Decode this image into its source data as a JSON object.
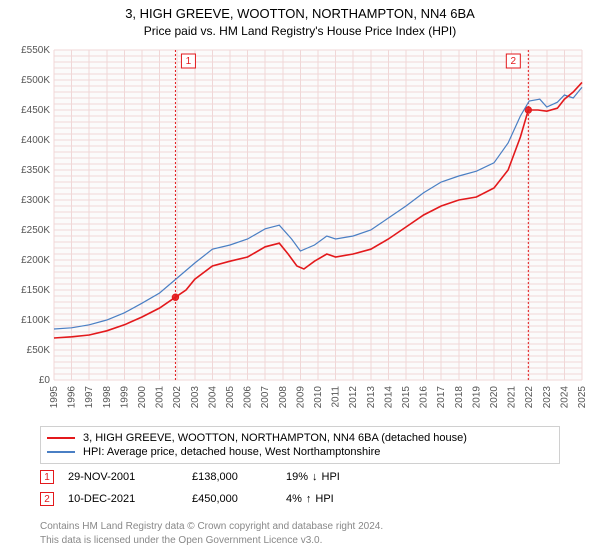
{
  "title": "3, HIGH GREEVE, WOOTTON, NORTHAMPTON, NN4 6BA",
  "subtitle": "Price paid vs. HM Land Registry's House Price Index (HPI)",
  "chart": {
    "type": "line",
    "background_color": "#fbfbfb",
    "grid_color": "#f0d7d7",
    "grid_fine_color": "#f8e9e9",
    "x_years": [
      1995,
      1996,
      1997,
      1998,
      1999,
      2000,
      2001,
      2002,
      2003,
      2004,
      2005,
      2006,
      2007,
      2008,
      2009,
      2010,
      2011,
      2012,
      2013,
      2014,
      2015,
      2016,
      2017,
      2018,
      2019,
      2020,
      2021,
      2022,
      2023,
      2024,
      2025
    ],
    "xlabel_rotate": -90,
    "y_ticks": [
      0,
      50000,
      100000,
      150000,
      200000,
      250000,
      300000,
      350000,
      400000,
      450000,
      500000,
      550000
    ],
    "y_tick_labels": [
      "£0",
      "£50K",
      "£100K",
      "£150K",
      "£200K",
      "£250K",
      "£300K",
      "£350K",
      "£400K",
      "£450K",
      "£500K",
      "£550K"
    ],
    "ylim": [
      0,
      550000
    ],
    "series": [
      {
        "id": "property",
        "label": "3, HIGH GREEVE, WOOTTON, NORTHAMPTON, NN4 6BA (detached house)",
        "color": "#e3191c",
        "width": 1.6,
        "points": [
          [
            1995.0,
            70000
          ],
          [
            1996.0,
            72000
          ],
          [
            1997.0,
            75000
          ],
          [
            1998.0,
            82000
          ],
          [
            1999.0,
            92000
          ],
          [
            2000.0,
            105000
          ],
          [
            2001.0,
            120000
          ],
          [
            2001.9,
            138000
          ],
          [
            2002.5,
            150000
          ],
          [
            2003.0,
            168000
          ],
          [
            2004.0,
            190000
          ],
          [
            2005.0,
            198000
          ],
          [
            2006.0,
            205000
          ],
          [
            2007.0,
            222000
          ],
          [
            2007.8,
            228000
          ],
          [
            2008.3,
            210000
          ],
          [
            2008.8,
            190000
          ],
          [
            2009.2,
            185000
          ],
          [
            2009.8,
            198000
          ],
          [
            2010.5,
            210000
          ],
          [
            2011.0,
            205000
          ],
          [
            2012.0,
            210000
          ],
          [
            2013.0,
            218000
          ],
          [
            2014.0,
            235000
          ],
          [
            2015.0,
            255000
          ],
          [
            2016.0,
            275000
          ],
          [
            2017.0,
            290000
          ],
          [
            2018.0,
            300000
          ],
          [
            2019.0,
            305000
          ],
          [
            2020.0,
            320000
          ],
          [
            2020.8,
            350000
          ],
          [
            2021.5,
            405000
          ],
          [
            2021.95,
            450000
          ],
          [
            2022.5,
            450000
          ],
          [
            2023.0,
            448000
          ],
          [
            2023.6,
            453000
          ],
          [
            2024.0,
            468000
          ],
          [
            2024.5,
            480000
          ],
          [
            2025.0,
            496000
          ]
        ]
      },
      {
        "id": "hpi",
        "label": "HPI: Average price, detached house, West Northamptonshire",
        "color": "#4a7fc4",
        "width": 1.2,
        "points": [
          [
            1995.0,
            85000
          ],
          [
            1996.0,
            87000
          ],
          [
            1997.0,
            92000
          ],
          [
            1998.0,
            100000
          ],
          [
            1999.0,
            112000
          ],
          [
            2000.0,
            128000
          ],
          [
            2001.0,
            145000
          ],
          [
            2002.0,
            170000
          ],
          [
            2003.0,
            195000
          ],
          [
            2004.0,
            218000
          ],
          [
            2005.0,
            225000
          ],
          [
            2006.0,
            235000
          ],
          [
            2007.0,
            252000
          ],
          [
            2007.8,
            258000
          ],
          [
            2008.5,
            235000
          ],
          [
            2009.0,
            215000
          ],
          [
            2009.8,
            225000
          ],
          [
            2010.5,
            240000
          ],
          [
            2011.0,
            235000
          ],
          [
            2012.0,
            240000
          ],
          [
            2013.0,
            250000
          ],
          [
            2014.0,
            270000
          ],
          [
            2015.0,
            290000
          ],
          [
            2016.0,
            312000
          ],
          [
            2017.0,
            330000
          ],
          [
            2018.0,
            340000
          ],
          [
            2019.0,
            348000
          ],
          [
            2020.0,
            362000
          ],
          [
            2020.8,
            395000
          ],
          [
            2021.5,
            440000
          ],
          [
            2022.0,
            465000
          ],
          [
            2022.6,
            468000
          ],
          [
            2023.0,
            455000
          ],
          [
            2023.6,
            463000
          ],
          [
            2024.0,
            475000
          ],
          [
            2024.5,
            470000
          ],
          [
            2025.0,
            488000
          ]
        ]
      }
    ],
    "markers": [
      {
        "num": "1",
        "year": 2001.9,
        "price": 138000,
        "color": "#e3191c"
      },
      {
        "num": "2",
        "year": 2021.95,
        "price": 450000,
        "color": "#e3191c"
      }
    ]
  },
  "legend": {
    "items": [
      {
        "color": "#e3191c",
        "label": "3, HIGH GREEVE, WOOTTON, NORTHAMPTON, NN4 6BA (detached house)"
      },
      {
        "color": "#4a7fc4",
        "label": "HPI: Average price, detached house, West Northamptonshire"
      }
    ]
  },
  "sales": [
    {
      "num": "1",
      "color": "#e3191c",
      "date": "29-NOV-2001",
      "price": "£138,000",
      "diff_pct": "19%",
      "arrow": "↓",
      "diff_label": "HPI"
    },
    {
      "num": "2",
      "color": "#e3191c",
      "date": "10-DEC-2021",
      "price": "£450,000",
      "diff_pct": "4%",
      "arrow": "↑",
      "diff_label": "HPI"
    }
  ],
  "footer": {
    "line1": "Contains HM Land Registry data © Crown copyright and database right 2024.",
    "line2": "This data is licensed under the Open Government Licence v3.0."
  }
}
